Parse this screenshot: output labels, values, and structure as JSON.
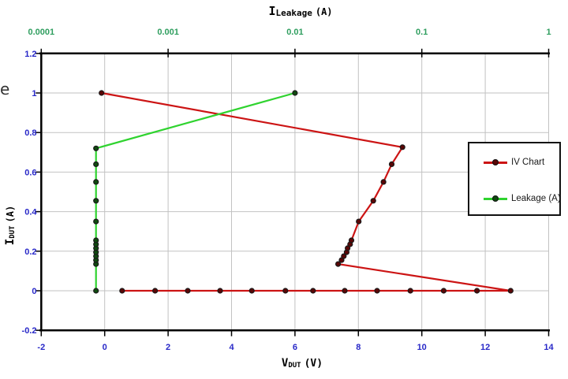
{
  "chart_data": {
    "type": "line",
    "description": "TLP-style IV curve with snapback (bottom linear V axis) and leakage current (top log axis)",
    "grid": true,
    "background": "#ffffff",
    "colors": {
      "gridline": "#c2c2c2",
      "axis": "#000000",
      "bottom_left_tick_labels": "#2828c8",
      "top_tick_labels": "#2f9e5f"
    },
    "axes": {
      "bottom": {
        "label": "VDUT (V)",
        "title_main": "V",
        "title_sub": "DUT",
        "title_unit": "(V)",
        "scale": "linear",
        "range": [
          -2,
          14
        ],
        "ticks": [
          -2,
          0,
          2,
          4,
          6,
          8,
          10,
          12,
          14
        ]
      },
      "top": {
        "label": "ILeakage (A)",
        "title_main": "I",
        "title_sub": "Leakage",
        "title_unit": "(A)",
        "scale": "log",
        "range": [
          0.0001,
          1
        ],
        "ticks": [
          0.0001,
          0.001,
          0.01,
          0.1,
          1
        ]
      },
      "left": {
        "label": "IDUT (A)",
        "title_main": "I",
        "title_sub": "DUT",
        "title_unit": "(A)",
        "scale": "linear",
        "range": [
          -0.2,
          1.2
        ],
        "ticks": [
          1.2,
          1,
          0.8,
          0.6,
          0.4,
          0.2,
          0,
          -0.2
        ]
      }
    },
    "series": [
      {
        "name": "IV Chart",
        "axis": "bottom",
        "line_color": "#cc1414",
        "marker_color": "#5a0606",
        "points": [
          [
            0.55,
            0
          ],
          [
            1.59,
            0
          ],
          [
            2.62,
            0
          ],
          [
            3.64,
            0
          ],
          [
            4.64,
            0
          ],
          [
            5.7,
            0
          ],
          [
            6.57,
            0
          ],
          [
            7.57,
            0
          ],
          [
            8.59,
            0
          ],
          [
            9.64,
            0
          ],
          [
            10.69,
            0
          ],
          [
            11.74,
            0
          ],
          [
            12.8,
            0
          ],
          [
            7.36,
            0.135
          ],
          [
            7.47,
            0.155
          ],
          [
            7.54,
            0.175
          ],
          [
            7.63,
            0.195
          ],
          [
            7.66,
            0.215
          ],
          [
            7.74,
            0.235
          ],
          [
            7.78,
            0.255
          ],
          [
            8.01,
            0.35
          ],
          [
            8.47,
            0.455
          ],
          [
            8.79,
            0.55
          ],
          [
            9.05,
            0.64
          ],
          [
            9.39,
            0.726
          ],
          [
            -0.1,
            1.0
          ]
        ]
      },
      {
        "name": "Leakage (A)",
        "axis": "top",
        "line_color": "#2fd32f",
        "marker_color": "#0f4a0f",
        "points": [
          [
            0.00027,
            0
          ],
          [
            0.00027,
            0.135
          ],
          [
            0.00027,
            0.155
          ],
          [
            0.00027,
            0.175
          ],
          [
            0.00027,
            0.195
          ],
          [
            0.00027,
            0.215
          ],
          [
            0.00027,
            0.235
          ],
          [
            0.00027,
            0.255
          ],
          [
            0.00027,
            0.35
          ],
          [
            0.00027,
            0.455
          ],
          [
            0.00027,
            0.55
          ],
          [
            0.00027,
            0.64
          ],
          [
            0.00027,
            0.72
          ],
          [
            0.01,
            1.0
          ]
        ]
      }
    ],
    "legend": {
      "position": "right-middle",
      "entries": [
        {
          "label": "IV Chart"
        },
        {
          "label": "Leakage (A)"
        }
      ]
    }
  },
  "stray_letter": "e"
}
